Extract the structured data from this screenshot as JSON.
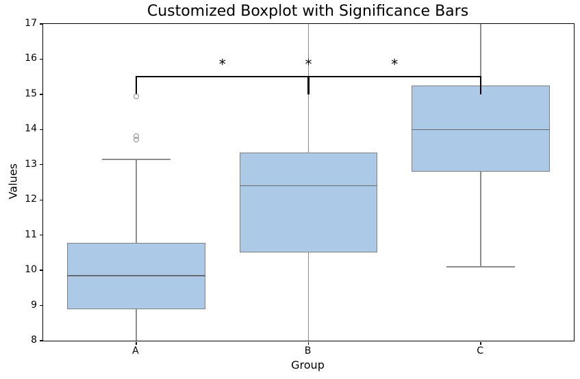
{
  "chart_data": {
    "type": "boxplot",
    "title": "Customized Boxplot with Significance Bars",
    "xlabel": "Group",
    "ylabel": "Values",
    "categories": [
      "A",
      "B",
      "C"
    ],
    "positions": [
      1,
      2,
      3
    ],
    "xlim": [
      0.46,
      3.54
    ],
    "ylim": [
      8,
      17
    ],
    "yticks": [
      8,
      9,
      10,
      11,
      12,
      13,
      14,
      15,
      16,
      17
    ],
    "box_width": 0.8,
    "cap_width": 0.4,
    "grid": false,
    "legend": null,
    "boxes": [
      {
        "group": "A",
        "q1": 8.9,
        "median": 9.85,
        "q3": 10.78,
        "whisker_low": 8.0,
        "whisker_low_clipped": true,
        "whisker_high": 13.15,
        "whisker_high_clipped": false,
        "outliers": [
          13.72,
          13.81,
          14.93
        ]
      },
      {
        "group": "B",
        "q1": 10.5,
        "median": 12.4,
        "q3": 13.35,
        "whisker_low": 8.0,
        "whisker_low_clipped": true,
        "whisker_high": 17.0,
        "whisker_high_clipped": true,
        "outliers": []
      },
      {
        "group": "C",
        "q1": 12.8,
        "median": 14.0,
        "q3": 15.25,
        "whisker_low": 10.1,
        "whisker_low_clipped": false,
        "whisker_high": 17.0,
        "whisker_high_clipped": true,
        "outliers": []
      }
    ],
    "significance_bars": [
      {
        "group1": "A",
        "group2": "B",
        "bar_y": 15.5,
        "tick_bottom_y": 15.0,
        "label": "*",
        "label_y": 15.85
      },
      {
        "group1": "A",
        "group2": "C",
        "bar_y": 15.5,
        "tick_bottom_y": 15.0,
        "label": "*",
        "label_y": 15.85
      },
      {
        "group1": "B",
        "group2": "C",
        "bar_y": 15.5,
        "tick_bottom_y": 15.0,
        "label": "*",
        "label_y": 15.85
      }
    ],
    "style": {
      "box_fill": "#adc9e8",
      "box_edge": "#808080",
      "median_color": "#6a6a6a",
      "whisker_color": "#8c8c8c",
      "outlier_edge": "#8c8c8c",
      "sig_bar_color": "#000000",
      "spine_color": "#000000",
      "text_color": "#000000"
    }
  }
}
